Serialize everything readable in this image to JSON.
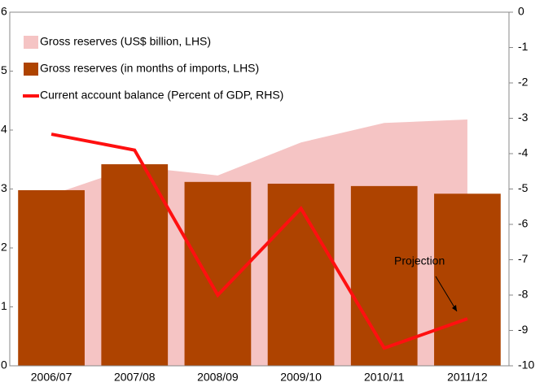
{
  "chart_data": {
    "type": "combo",
    "categories": [
      "2006/07",
      "2007/08",
      "2008/09",
      "2009/10",
      "2010/11",
      "2011/12"
    ],
    "series": [
      {
        "name": "Gross reserves (US$ billion, LHS)",
        "type": "area",
        "color": "#f5c4c4",
        "values": [
          2.9,
          3.38,
          3.23,
          3.79,
          4.12,
          4.18
        ]
      },
      {
        "name": "Gross reserves (in months of imports, LHS)",
        "type": "bar",
        "color": "#ae4300",
        "values": [
          2.98,
          3.42,
          3.12,
          3.09,
          3.05,
          2.92
        ]
      },
      {
        "name": "Current account balance (Percent of GDP, RHS)",
        "type": "line",
        "color": "#ff1010",
        "axis": "y2",
        "values": [
          -3.45,
          -3.9,
          -8.0,
          -5.55,
          -9.5,
          -8.67
        ]
      }
    ],
    "ylim": [
      0,
      6
    ],
    "yticks": [
      0,
      1,
      2,
      3,
      4,
      5,
      6
    ],
    "y2lim": [
      -10,
      0
    ],
    "y2ticks": [
      0,
      -1,
      -2,
      -3,
      -4,
      -5,
      -6,
      -7,
      -8,
      -9,
      -10
    ],
    "legend": "upper left",
    "annotations": [
      {
        "text": "Projection"
      }
    ]
  }
}
